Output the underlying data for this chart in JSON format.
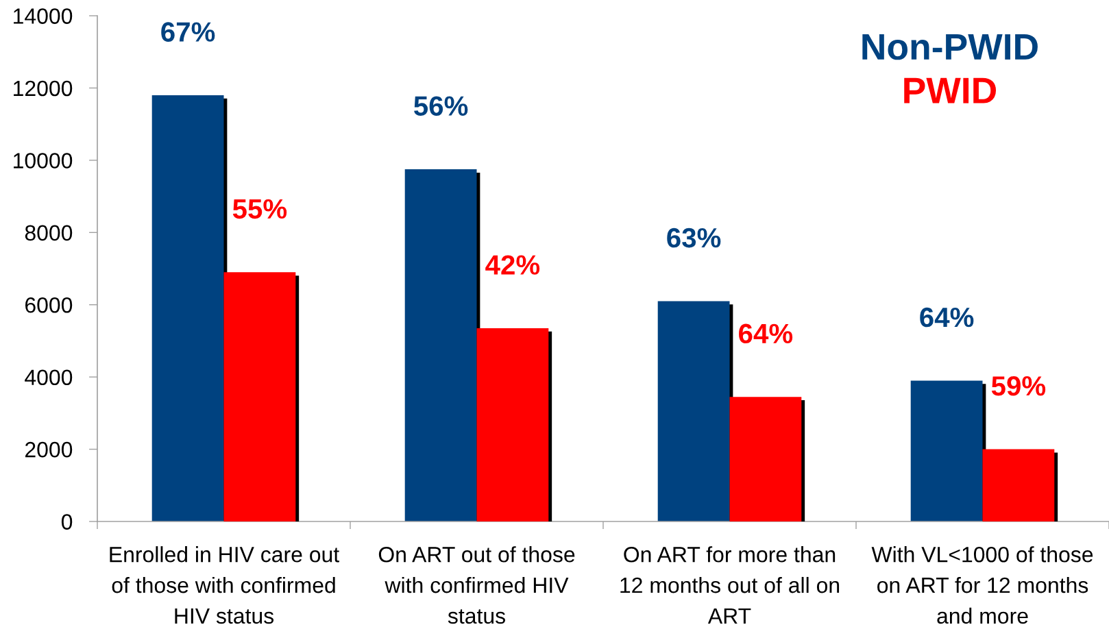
{
  "chart_data": {
    "type": "bar",
    "categories": [
      "Enrolled in HIV care out of those with confirmed HIV status",
      "On ART out of those with confirmed HIV status",
      "On ART for more than 12 months out of all on ART",
      "With VL<1000 of those on ART for 12 months and more"
    ],
    "series": [
      {
        "name": "Non-PWID",
        "color": "#004280",
        "values": [
          11800,
          9750,
          6100,
          3900
        ]
      },
      {
        "name": "PWID",
        "color": "#ff0000",
        "values": [
          6900,
          5350,
          3450,
          2000
        ]
      }
    ],
    "annotations": [
      {
        "text": "67%",
        "x": "Enrolled in HIV care out of those with confirmed HIV status",
        "y": 11800
      },
      {
        "text": "55%",
        "x": "Enrolled in HIV care out of those with confirmed HIV status",
        "y": 6900
      },
      {
        "text": "56%",
        "x": "On ART out of those with confirmed HIV status",
        "y": 9750
      },
      {
        "text": "42%",
        "x": "On ART out of those with confirmed HIV status",
        "y": 5350
      },
      {
        "text": "63%",
        "x": "On ART for more than 12 months out of all on ART",
        "y": 6100
      },
      {
        "text": "64%",
        "x": "On ART for more than 12 months out of all on ART",
        "y": 3450
      },
      {
        "text": "64%",
        "x": "With VL<1000 of those on ART for 12 months and more",
        "y": 3900
      },
      {
        "text": "59%",
        "x": "With VL<1000 of those on ART for 12 months and more",
        "y": 2000
      }
    ],
    "ylim": [
      0,
      14000
    ],
    "yticks": [
      0,
      2000,
      4000,
      6000,
      8000,
      10000,
      12000,
      14000
    ],
    "legend": "top right"
  }
}
